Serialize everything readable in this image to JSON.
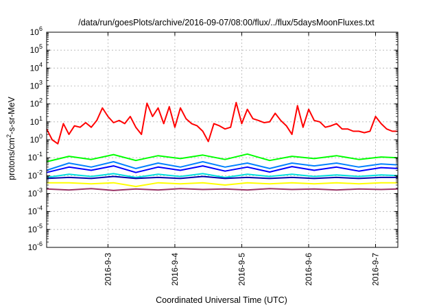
{
  "chart_data": {
    "type": "line",
    "title": "/data/run/goesPlots/archive/2016-09-07/08:00/flux/../flux/5daysMoonFluxes.txt",
    "xlabel": "Coordinated Universal Time (UTC)",
    "ylabel_main": "protons/cm",
    "ylabel_sup": "2",
    "ylabel_rest": "-s-sr-MeV",
    "y_scale": "log",
    "ylim": [
      1e-06,
      1000000.0
    ],
    "xlim": [
      "2016-09-02 02:00",
      "2016-09-07 08:00"
    ],
    "y_ticks": [
      {
        "value": -6,
        "base": "10",
        "exp": "-6"
      },
      {
        "value": -5,
        "base": "10",
        "exp": "-5"
      },
      {
        "value": -4,
        "base": "10",
        "exp": "-4"
      },
      {
        "value": -3,
        "base": "10",
        "exp": "-3"
      },
      {
        "value": -2,
        "base": "10",
        "exp": "-2"
      },
      {
        "value": -1,
        "base": "10",
        "exp": "-1"
      },
      {
        "value": 0,
        "base": "10",
        "exp": "0"
      },
      {
        "value": 1,
        "base": "10",
        "exp": "1"
      },
      {
        "value": 2,
        "base": "10",
        "exp": "2"
      },
      {
        "value": 3,
        "base": "10",
        "exp": "3"
      },
      {
        "value": 4,
        "base": "10",
        "exp": "4"
      },
      {
        "value": 5,
        "base": "10",
        "exp": "5"
      },
      {
        "value": 6,
        "base": "10",
        "exp": "6"
      }
    ],
    "x_ticks": [
      {
        "x": "2016-09-03 00:00",
        "label": "2016-9-3"
      },
      {
        "x": "2016-09-04 00:00",
        "label": "2016-9-4"
      },
      {
        "x": "2016-09-05 00:00",
        "label": "2016-9-5"
      },
      {
        "x": "2016-09-06 00:00",
        "label": "2016-9-6"
      },
      {
        "x": "2016-09-07 00:00",
        "label": "2016-9-7"
      }
    ],
    "grid": true,
    "series": [
      {
        "color": "#ff0000",
        "x": [
          "2016-09-02 02:00",
          "2016-09-02 04:00",
          "2016-09-02 06:00",
          "2016-09-02 08:00",
          "2016-09-02 10:00",
          "2016-09-02 12:00",
          "2016-09-02 14:00",
          "2016-09-02 16:00",
          "2016-09-02 18:00",
          "2016-09-02 20:00",
          "2016-09-02 22:00",
          "2016-09-03 00:00",
          "2016-09-03 02:00",
          "2016-09-03 04:00",
          "2016-09-03 06:00",
          "2016-09-03 08:00",
          "2016-09-03 10:00",
          "2016-09-03 12:00",
          "2016-09-03 14:00",
          "2016-09-03 16:00",
          "2016-09-03 18:00",
          "2016-09-03 20:00",
          "2016-09-03 22:00",
          "2016-09-04 00:00",
          "2016-09-04 02:00",
          "2016-09-04 04:00",
          "2016-09-04 06:00",
          "2016-09-04 08:00",
          "2016-09-04 10:00",
          "2016-09-04 12:00",
          "2016-09-04 14:00",
          "2016-09-04 16:00",
          "2016-09-04 18:00",
          "2016-09-04 20:00",
          "2016-09-04 22:00",
          "2016-09-05 00:00",
          "2016-09-05 02:00",
          "2016-09-05 04:00",
          "2016-09-05 06:00",
          "2016-09-05 08:00",
          "2016-09-05 10:00",
          "2016-09-05 12:00",
          "2016-09-05 14:00",
          "2016-09-05 16:00",
          "2016-09-05 18:00",
          "2016-09-05 20:00",
          "2016-09-05 22:00",
          "2016-09-06 00:00",
          "2016-09-06 02:00",
          "2016-09-06 04:00",
          "2016-09-06 06:00",
          "2016-09-06 08:00",
          "2016-09-06 10:00",
          "2016-09-06 12:00",
          "2016-09-06 14:00",
          "2016-09-06 16:00",
          "2016-09-06 18:00",
          "2016-09-06 20:00",
          "2016-09-06 22:00",
          "2016-09-07 00:00",
          "2016-09-07 02:00",
          "2016-09-07 04:00",
          "2016-09-07 06:00",
          "2016-09-07 08:00"
        ],
        "y": [
          4,
          1,
          0.6,
          8,
          2,
          6,
          5,
          9,
          5,
          12,
          60,
          20,
          9,
          12,
          8,
          20,
          5,
          2,
          110,
          20,
          60,
          8,
          70,
          5,
          60,
          15,
          8,
          6,
          3,
          0.8,
          8,
          6,
          4,
          5,
          120,
          8,
          50,
          15,
          12,
          9,
          10,
          30,
          12,
          6,
          2,
          80,
          5,
          50,
          12,
          10,
          5,
          6,
          8,
          4,
          4,
          3,
          3,
          2.5,
          3,
          20,
          8,
          4,
          3,
          3
        ]
      },
      {
        "color": "#00ff00",
        "x": [
          "2016-09-02 02:00",
          "2016-09-02 10:00",
          "2016-09-02 18:00",
          "2016-09-03 02:00",
          "2016-09-03 10:00",
          "2016-09-03 18:00",
          "2016-09-04 02:00",
          "2016-09-04 10:00",
          "2016-09-04 18:00",
          "2016-09-05 02:00",
          "2016-09-05 10:00",
          "2016-09-05 18:00",
          "2016-09-06 02:00",
          "2016-09-06 10:00",
          "2016-09-06 18:00",
          "2016-09-07 02:00",
          "2016-09-07 08:00"
        ],
        "y": [
          0.06,
          0.12,
          0.08,
          0.15,
          0.07,
          0.13,
          0.09,
          0.14,
          0.08,
          0.16,
          0.07,
          0.12,
          0.09,
          0.13,
          0.08,
          0.11,
          0.1
        ]
      },
      {
        "color": "#0080ff",
        "x": [
          "2016-09-02 02:00",
          "2016-09-02 10:00",
          "2016-09-02 18:00",
          "2016-09-03 02:00",
          "2016-09-03 10:00",
          "2016-09-03 18:00",
          "2016-09-04 02:00",
          "2016-09-04 10:00",
          "2016-09-04 18:00",
          "2016-09-05 02:00",
          "2016-09-05 10:00",
          "2016-09-05 18:00",
          "2016-09-06 02:00",
          "2016-09-06 10:00",
          "2016-09-06 18:00",
          "2016-09-07 02:00",
          "2016-09-07 08:00"
        ],
        "y": [
          0.02,
          0.05,
          0.03,
          0.06,
          0.025,
          0.05,
          0.03,
          0.06,
          0.03,
          0.05,
          0.025,
          0.05,
          0.035,
          0.05,
          0.03,
          0.045,
          0.04
        ]
      },
      {
        "color": "#0000ff",
        "x": [
          "2016-09-02 02:00",
          "2016-09-02 10:00",
          "2016-09-02 18:00",
          "2016-09-03 02:00",
          "2016-09-03 10:00",
          "2016-09-03 18:00",
          "2016-09-04 02:00",
          "2016-09-04 10:00",
          "2016-09-04 18:00",
          "2016-09-05 02:00",
          "2016-09-05 10:00",
          "2016-09-05 18:00",
          "2016-09-06 02:00",
          "2016-09-06 10:00",
          "2016-09-06 18:00",
          "2016-09-07 02:00",
          "2016-09-07 08:00"
        ],
        "y": [
          0.015,
          0.03,
          0.02,
          0.035,
          0.015,
          0.03,
          0.02,
          0.035,
          0.018,
          0.03,
          0.016,
          0.032,
          0.02,
          0.03,
          0.018,
          0.028,
          0.025
        ]
      },
      {
        "color": "#00dddd",
        "x": [
          "2016-09-02 02:00",
          "2016-09-02 10:00",
          "2016-09-02 18:00",
          "2016-09-03 02:00",
          "2016-09-03 10:00",
          "2016-09-03 18:00",
          "2016-09-04 02:00",
          "2016-09-04 10:00",
          "2016-09-04 18:00",
          "2016-09-05 02:00",
          "2016-09-05 10:00",
          "2016-09-05 18:00",
          "2016-09-06 02:00",
          "2016-09-06 10:00",
          "2016-09-06 18:00",
          "2016-09-07 02:00",
          "2016-09-07 08:00"
        ],
        "y": [
          0.008,
          0.012,
          0.009,
          0.013,
          0.008,
          0.012,
          0.009,
          0.013,
          0.008,
          0.012,
          0.009,
          0.012,
          0.009,
          0.011,
          0.009,
          0.011,
          0.01
        ]
      },
      {
        "color": "#0000aa",
        "x": [
          "2016-09-02 02:00",
          "2016-09-02 10:00",
          "2016-09-02 18:00",
          "2016-09-03 02:00",
          "2016-09-03 10:00",
          "2016-09-03 18:00",
          "2016-09-04 02:00",
          "2016-09-04 10:00",
          "2016-09-04 18:00",
          "2016-09-05 02:00",
          "2016-09-05 10:00",
          "2016-09-05 18:00",
          "2016-09-06 02:00",
          "2016-09-06 10:00",
          "2016-09-06 18:00",
          "2016-09-07 02:00",
          "2016-09-07 08:00"
        ],
        "y": [
          0.007,
          0.008,
          0.007,
          0.009,
          0.007,
          0.008,
          0.007,
          0.009,
          0.007,
          0.008,
          0.007,
          0.008,
          0.007,
          0.008,
          0.007,
          0.008,
          0.008
        ]
      },
      {
        "color": "#ffff00",
        "x": [
          "2016-09-02 02:00",
          "2016-09-02 10:00",
          "2016-09-02 18:00",
          "2016-09-03 02:00",
          "2016-09-03 10:00",
          "2016-09-03 18:00",
          "2016-09-04 02:00",
          "2016-09-04 10:00",
          "2016-09-04 18:00",
          "2016-09-05 02:00",
          "2016-09-05 10:00",
          "2016-09-05 18:00",
          "2016-09-06 02:00",
          "2016-09-06 10:00",
          "2016-09-06 18:00",
          "2016-09-07 02:00",
          "2016-09-07 08:00"
        ],
        "y": [
          0.004,
          0.004,
          0.0035,
          0.004,
          0.0025,
          0.004,
          0.0035,
          0.004,
          0.003,
          0.004,
          0.0035,
          0.004,
          0.0035,
          0.004,
          0.0035,
          0.004,
          0.004
        ]
      },
      {
        "color": "#993366",
        "x": [
          "2016-09-02 02:00",
          "2016-09-02 10:00",
          "2016-09-02 18:00",
          "2016-09-03 02:00",
          "2016-09-03 10:00",
          "2016-09-03 18:00",
          "2016-09-04 02:00",
          "2016-09-04 10:00",
          "2016-09-04 18:00",
          "2016-09-05 02:00",
          "2016-09-05 10:00",
          "2016-09-05 18:00",
          "2016-09-06 02:00",
          "2016-09-06 10:00",
          "2016-09-06 18:00",
          "2016-09-07 02:00",
          "2016-09-07 08:00"
        ],
        "y": [
          0.0018,
          0.0016,
          0.0019,
          0.0015,
          0.0018,
          0.0016,
          0.0019,
          0.0017,
          0.0018,
          0.0016,
          0.0019,
          0.0017,
          0.0018,
          0.0016,
          0.0018,
          0.0017,
          0.0018
        ]
      }
    ]
  }
}
